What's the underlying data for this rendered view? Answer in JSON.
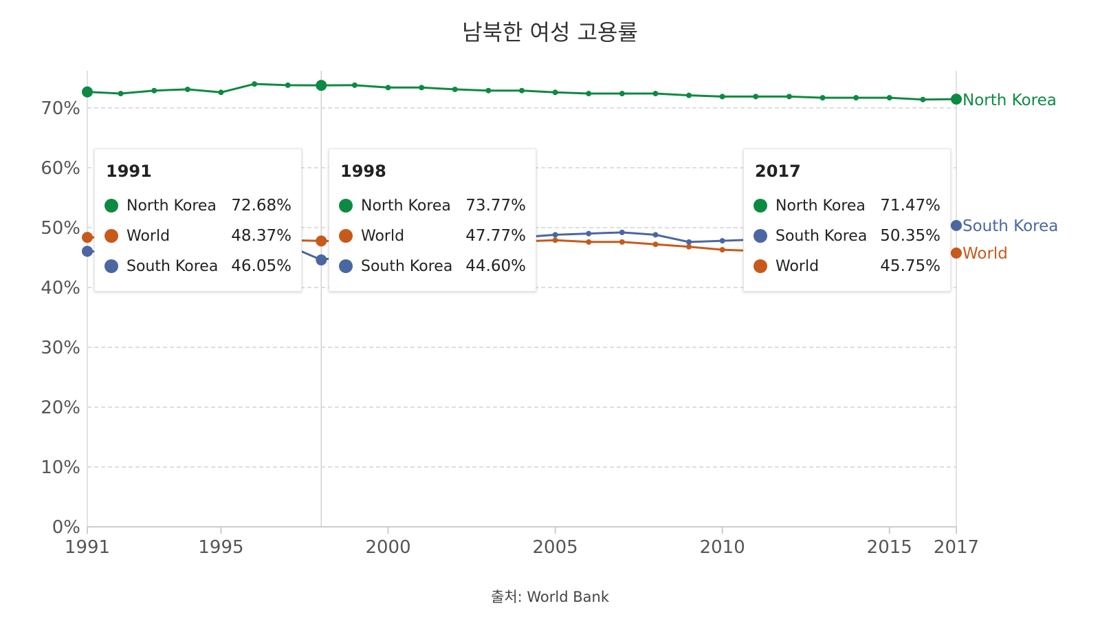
{
  "chart_data": {
    "type": "line",
    "title": "남북한 여성 고용률",
    "source": "출처: World Bank",
    "xlabel": "",
    "ylabel": "",
    "x": [
      1991,
      1992,
      1993,
      1994,
      1995,
      1996,
      1997,
      1998,
      1999,
      2000,
      2001,
      2002,
      2003,
      2004,
      2005,
      2006,
      2007,
      2008,
      2009,
      2010,
      2011,
      2012,
      2013,
      2014,
      2015,
      2016,
      2017
    ],
    "xlim": [
      1991,
      2017
    ],
    "ylim": [
      0,
      70
    ],
    "x_ticks": [
      1991,
      1995,
      2000,
      2005,
      2010,
      2015,
      2017
    ],
    "y_ticks": [
      0,
      10,
      20,
      30,
      40,
      50,
      60,
      70
    ],
    "y_tick_labels": [
      "0%",
      "10%",
      "20%",
      "30%",
      "40%",
      "50%",
      "60%",
      "70%"
    ],
    "grid": "horizontal dashed",
    "legend": "line-end labels",
    "series": [
      {
        "name": "North Korea",
        "color": "#0d8a42",
        "values": [
          72.68,
          72.4,
          72.9,
          73.1,
          72.6,
          74.0,
          73.8,
          73.77,
          73.8,
          73.4,
          73.4,
          73.1,
          72.9,
          72.9,
          72.6,
          72.4,
          72.4,
          72.4,
          72.1,
          71.9,
          71.9,
          71.9,
          71.7,
          71.7,
          71.7,
          71.4,
          71.47
        ]
      },
      {
        "name": "South Korea",
        "color": "#4a67a1",
        "values": [
          46.05,
          45.8,
          45.7,
          46.7,
          47.4,
          48.2,
          47.0,
          44.6,
          45.5,
          47.0,
          47.5,
          48.2,
          47.8,
          48.4,
          48.8,
          49.0,
          49.2,
          48.8,
          47.6,
          47.8,
          48.0,
          48.6,
          48.8,
          49.6,
          50.0,
          50.3,
          50.35
        ]
      },
      {
        "name": "World",
        "color": "#c75a1b",
        "values": [
          48.37,
          48.3,
          48.2,
          48.2,
          48.1,
          48.0,
          47.9,
          47.77,
          47.7,
          47.6,
          47.6,
          47.5,
          47.6,
          47.7,
          47.9,
          47.6,
          47.6,
          47.2,
          46.8,
          46.3,
          46.1,
          46.0,
          45.9,
          45.9,
          45.8,
          45.7,
          45.75
        ]
      }
    ],
    "tooltips": [
      {
        "year": "1991",
        "rows": [
          {
            "name": "North Korea",
            "value": "72.68%",
            "color": "#0d8a42"
          },
          {
            "name": "World",
            "value": "48.37%",
            "color": "#c75a1b"
          },
          {
            "name": "South Korea",
            "value": "46.05%",
            "color": "#4a67a1"
          }
        ]
      },
      {
        "year": "1998",
        "rows": [
          {
            "name": "North Korea",
            "value": "73.77%",
            "color": "#0d8a42"
          },
          {
            "name": "World",
            "value": "47.77%",
            "color": "#c75a1b"
          },
          {
            "name": "South Korea",
            "value": "44.60%",
            "color": "#4a67a1"
          }
        ]
      },
      {
        "year": "2017",
        "rows": [
          {
            "name": "North Korea",
            "value": "71.47%",
            "color": "#0d8a42"
          },
          {
            "name": "South Korea",
            "value": "50.35%",
            "color": "#4a67a1"
          },
          {
            "name": "World",
            "value": "45.75%",
            "color": "#c75a1b"
          }
        ]
      }
    ]
  }
}
